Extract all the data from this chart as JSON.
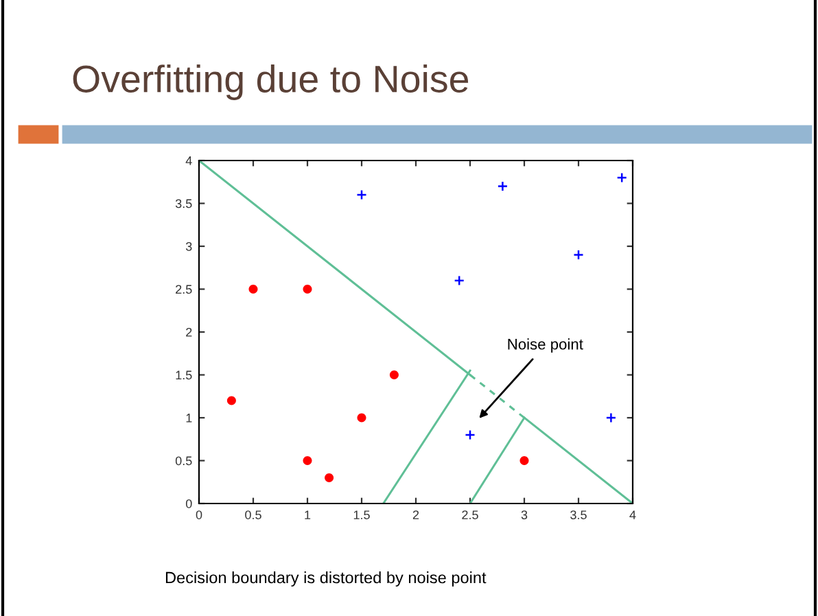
{
  "chart_data": {
    "type": "scatter",
    "title": "Overfitting due to Noise",
    "xlim": [
      0,
      4
    ],
    "ylim": [
      0,
      4
    ],
    "xticks": [
      0,
      0.5,
      1,
      1.5,
      2,
      2.5,
      3,
      3.5,
      4
    ],
    "yticks": [
      0,
      0.5,
      1,
      1.5,
      2,
      2.5,
      3,
      3.5,
      4
    ],
    "grid": false,
    "series": [
      {
        "marker": "circle",
        "color": "#ff0000",
        "x": [
          0.3,
          0.5,
          1,
          1,
          1.2,
          1.5,
          1.8,
          3
        ],
        "values": [
          1.2,
          2.5,
          2.5,
          0.5,
          0.3,
          1,
          1.5,
          0.5
        ]
      },
      {
        "marker": "cross",
        "color": "#0000ff",
        "x": [
          1.5,
          2.8,
          3.9,
          3.5,
          2.4,
          3.8,
          2.5
        ],
        "values": [
          3.6,
          3.7,
          3.8,
          2.9,
          2.6,
          1,
          0.8
        ]
      },
      {
        "type": "line",
        "line_style": "solid",
        "color": "#5fbf96",
        "x": [
          0,
          2.5
        ],
        "values": [
          4,
          1.5
        ]
      },
      {
        "type": "line",
        "line_style": "dashed",
        "color": "#5fbf96",
        "x": [
          2.5,
          3
        ],
        "values": [
          1.5,
          1
        ]
      },
      {
        "type": "line",
        "line_style": "solid",
        "color": "#5fbf96",
        "x": [
          3,
          4
        ],
        "values": [
          1,
          0
        ]
      },
      {
        "type": "line",
        "line_style": "solid",
        "color": "#5fbf96",
        "x": [
          1.7,
          2.5
        ],
        "values": [
          0,
          1.55
        ]
      },
      {
        "type": "line",
        "line_style": "solid",
        "color": "#5fbf96",
        "x": [
          2.5,
          3
        ],
        "values": [
          0,
          1
        ]
      }
    ],
    "annotations": [
      "Noise point",
      "Decision boundary is distorted by noise point"
    ]
  }
}
